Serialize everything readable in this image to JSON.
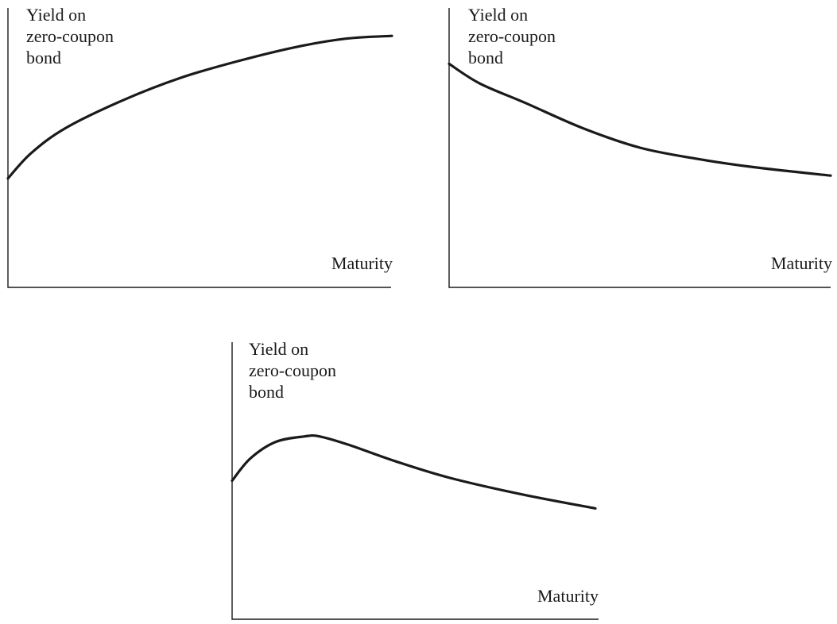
{
  "colors": {
    "curve": "#1a1a1a",
    "axis": "#1a1a1a",
    "background": "#ffffff"
  },
  "chart_data": [
    {
      "type": "line",
      "shape": "upward sloping",
      "ylabel_lines": [
        "Yield on",
        "zero-coupon",
        "bond"
      ],
      "xlabel": "Maturity",
      "grid": false,
      "xlim": [
        0,
        1
      ],
      "ylim": [
        0,
        1
      ],
      "series": [
        {
          "x": [
            0.0,
            0.06,
            0.15,
            0.3,
            0.45,
            0.6,
            0.75,
            0.88,
            1.0
          ],
          "y": [
            0.39,
            0.48,
            0.57,
            0.67,
            0.75,
            0.81,
            0.86,
            0.89,
            0.9
          ]
        }
      ]
    },
    {
      "type": "line",
      "shape": "downward sloping",
      "ylabel_lines": [
        "Yield on",
        "zero-coupon",
        "bond"
      ],
      "xlabel": "Maturity",
      "grid": false,
      "xlim": [
        0,
        1
      ],
      "ylim": [
        0,
        1
      ],
      "series": [
        {
          "x": [
            0.0,
            0.08,
            0.2,
            0.35,
            0.5,
            0.65,
            0.8,
            1.0
          ],
          "y": [
            0.8,
            0.73,
            0.66,
            0.57,
            0.5,
            0.46,
            0.43,
            0.4
          ]
        }
      ]
    },
    {
      "type": "line",
      "shape": "humped",
      "ylabel_lines": [
        "Yield on",
        "zero-coupon",
        "bond"
      ],
      "xlabel": "Maturity",
      "grid": false,
      "xlim": [
        0,
        1
      ],
      "ylim": [
        0,
        1
      ],
      "series": [
        {
          "x": [
            0.0,
            0.05,
            0.12,
            0.2,
            0.24,
            0.32,
            0.45,
            0.6,
            0.8,
            1.0
          ],
          "y": [
            0.5,
            0.58,
            0.64,
            0.66,
            0.66,
            0.63,
            0.57,
            0.51,
            0.45,
            0.4
          ]
        }
      ]
    }
  ]
}
